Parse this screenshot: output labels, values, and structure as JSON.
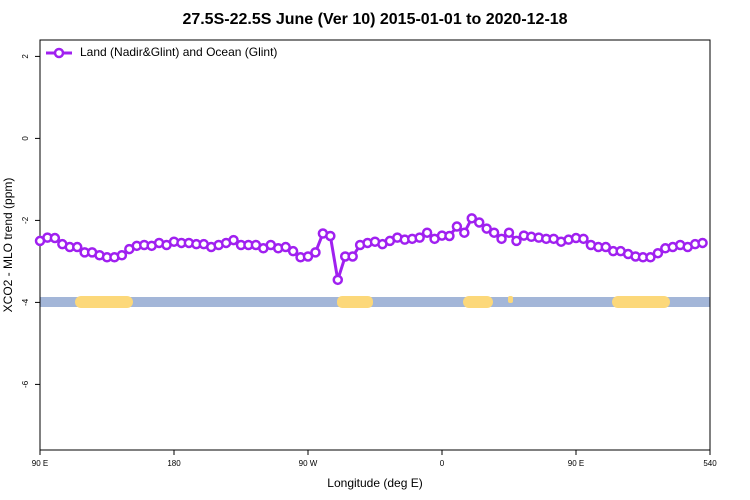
{
  "chart_data": {
    "type": "line",
    "title": "27.5S-22.5S June (Ver 10)   2015-01-01 to 2020-12-18",
    "x_label": "Longitude (deg E)",
    "y_label": "XCO2 - MLO trend (ppm)",
    "xlim": [
      90,
      540
    ],
    "xticks": [
      {
        "value": 90,
        "label": "90 E"
      },
      180,
      {
        "value": 270,
        "label": "90 W"
      },
      {
        "value": 360,
        "label": "0"
      },
      {
        "value": 450,
        "label": "90 E"
      },
      540
    ],
    "ylim": [
      -7.6,
      2.4
    ],
    "yticks": [
      2,
      0,
      -2,
      -4,
      -6
    ],
    "legend_position": "top-left",
    "x": [
      90,
      95,
      100,
      105,
      110,
      115,
      120,
      125,
      130,
      135,
      140,
      145,
      150,
      155,
      160,
      165,
      170,
      175,
      180,
      185,
      190,
      195,
      200,
      205,
      210,
      215,
      220,
      225,
      230,
      235,
      240,
      245,
      250,
      255,
      260,
      265,
      270,
      275,
      280,
      285,
      290,
      295,
      300,
      305,
      310,
      315,
      320,
      325,
      330,
      335,
      340,
      345,
      350,
      355,
      360,
      365,
      370,
      375,
      380,
      385,
      390,
      395,
      400,
      405,
      410,
      415,
      420,
      425,
      430,
      435,
      440,
      445,
      450,
      455,
      460,
      465,
      470,
      475,
      480,
      485,
      490,
      495,
      500,
      505,
      510,
      515,
      520,
      525,
      530,
      535
    ],
    "series": [
      {
        "name": "Land (Nadir&Glint) and Ocean (Glint)",
        "color": "#a020f0",
        "values": [
          -2.5,
          -2.42,
          -2.43,
          -2.58,
          -2.65,
          -2.65,
          -2.78,
          -2.78,
          -2.85,
          -2.9,
          -2.9,
          -2.85,
          -2.7,
          -2.62,
          -2.6,
          -2.62,
          -2.55,
          -2.6,
          -2.52,
          -2.55,
          -2.55,
          -2.58,
          -2.58,
          -2.65,
          -2.6,
          -2.55,
          -2.48,
          -2.6,
          -2.6,
          -2.6,
          -2.68,
          -2.6,
          -2.68,
          -2.65,
          -2.75,
          -2.9,
          -2.88,
          -2.78,
          -2.32,
          -2.38,
          -3.45,
          -2.88,
          -2.88,
          -2.6,
          -2.55,
          -2.52,
          -2.58,
          -2.5,
          -2.42,
          -2.47,
          -2.45,
          -2.42,
          -2.3,
          -2.45,
          -2.37,
          -2.38,
          -2.15,
          -2.3,
          -1.95,
          -2.05,
          -2.2,
          -2.3,
          -2.45,
          -2.3,
          -2.5,
          -2.37,
          -2.4,
          -2.42,
          -2.45,
          -2.45,
          -2.52,
          -2.47,
          -2.43,
          -2.45,
          -2.6,
          -2.65,
          -2.65,
          -2.75,
          -2.75,
          -2.82,
          -2.88,
          -2.9,
          -2.9,
          -2.8,
          -2.68,
          -2.65,
          -2.6,
          -2.65,
          -2.58,
          -2.55
        ]
      }
    ]
  }
}
